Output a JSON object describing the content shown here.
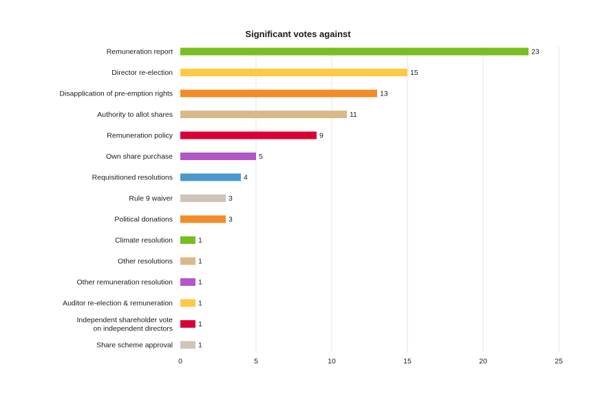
{
  "chart_data": {
    "type": "bar",
    "orientation": "horizontal",
    "title": "Significant votes against",
    "xlabel": "",
    "ylabel": "",
    "xlim": [
      0,
      25
    ],
    "xticks": [
      0,
      5,
      10,
      15,
      20,
      25
    ],
    "grid": "vertical",
    "categories": [
      "Remuneration report",
      "Director re-election",
      "Disapplication of pre-emption rights",
      "Authority to allot shares",
      "Remuneration policy",
      "Own share purchase",
      "Requisitioned resolutions",
      "Rule 9 waiver",
      "Political donations",
      "Climate resolution",
      "Other resolutions",
      "Other remuneration resolution",
      "Auditor re-election & remuneration",
      "Independent shareholder vote on independent directors",
      "Share scheme approval"
    ],
    "category_lines": [
      [
        "Remuneration report"
      ],
      [
        "Director re-election"
      ],
      [
        "Disapplication of pre-emption rights"
      ],
      [
        "Authority to allot shares"
      ],
      [
        "Remuneration policy"
      ],
      [
        "Own share purchase"
      ],
      [
        "Requisitioned resolutions"
      ],
      [
        "Rule 9 waiver"
      ],
      [
        "Political donations"
      ],
      [
        "Climate resolution"
      ],
      [
        "Other resolutions"
      ],
      [
        "Other remuneration resolution"
      ],
      [
        "Auditor re-election & remuneration"
      ],
      [
        "Independent shareholder vote",
        "on independent directors"
      ],
      [
        "Share scheme approval"
      ]
    ],
    "values": [
      23,
      15,
      13,
      11,
      9,
      5,
      4,
      3,
      3,
      1,
      1,
      1,
      1,
      1,
      1
    ],
    "colors": [
      "#78BE20",
      "#FFC845",
      "#F28C28",
      "#D9B98A",
      "#DA0037",
      "#B455C8",
      "#4A98CE",
      "#CFC4B7",
      "#F28C28",
      "#78BE20",
      "#D9B98A",
      "#B455C8",
      "#FFC845",
      "#DA0037",
      "#CFC4B7"
    ]
  }
}
